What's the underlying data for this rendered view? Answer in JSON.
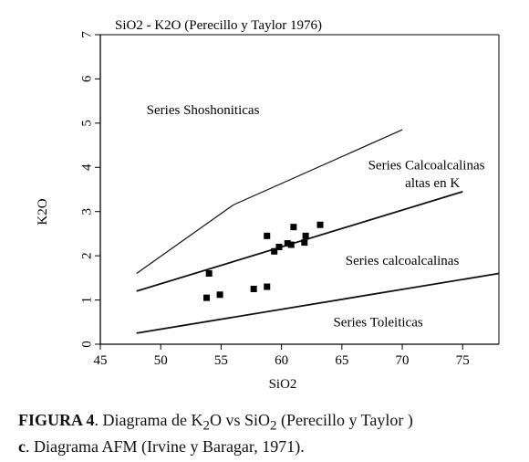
{
  "chart_data": {
    "type": "scatter",
    "title": "SiO2 - K2O (Perecillo y Taylor 1976)",
    "xlabel": "SiO2",
    "ylabel": "K2O",
    "xlim": [
      45,
      78
    ],
    "ylim": [
      0,
      7
    ],
    "x_ticks": [
      "45",
      "50",
      "55",
      "60",
      "65",
      "70",
      "75"
    ],
    "y_ticks": [
      "0",
      "1",
      "2",
      "3",
      "4",
      "5",
      "6",
      "7"
    ],
    "grid": false,
    "legend": "none",
    "boundaries": [
      {
        "points": [
          [
            48,
            1.6
          ],
          [
            56,
            3.15
          ],
          [
            70,
            4.85
          ]
        ]
      },
      {
        "points": [
          [
            48,
            1.2
          ],
          [
            75,
            3.45
          ]
        ]
      },
      {
        "points": [
          [
            48,
            0.25
          ],
          [
            78,
            1.6
          ]
        ]
      }
    ],
    "fields": [
      {
        "label": "Series Shoshoniticas",
        "x": 53.5,
        "y": 5.2
      },
      {
        "label": "Series Calcoalcalinas",
        "x": 72,
        "y": 3.95
      },
      {
        "label": "altas en K",
        "x": 72.5,
        "y": 3.55
      },
      {
        "label": "Series calcoalcalinas",
        "x": 70,
        "y": 1.8
      },
      {
        "label": "Series Toleiticas",
        "x": 68,
        "y": 0.4
      }
    ],
    "points": [
      {
        "x": 54.0,
        "y": 1.6
      },
      {
        "x": 53.8,
        "y": 1.05
      },
      {
        "x": 54.9,
        "y": 1.12
      },
      {
        "x": 57.7,
        "y": 1.25
      },
      {
        "x": 58.8,
        "y": 1.3
      },
      {
        "x": 58.8,
        "y": 2.45
      },
      {
        "x": 59.4,
        "y": 2.1
      },
      {
        "x": 59.8,
        "y": 2.2
      },
      {
        "x": 60.5,
        "y": 2.28
      },
      {
        "x": 60.8,
        "y": 2.25
      },
      {
        "x": 61.0,
        "y": 2.65
      },
      {
        "x": 61.9,
        "y": 2.3
      },
      {
        "x": 62.0,
        "y": 2.45
      },
      {
        "x": 63.2,
        "y": 2.7
      }
    ],
    "marker_color": "#000000"
  },
  "caption": {
    "line1_bold": "FIGURA 4",
    "line1_a": ".  Diagrama de K",
    "line1_sub1": "2",
    "line1_b": "O vs SiO",
    "line1_sub2": "2",
    "line1_c": "  (Perecillo y Taylor )",
    "line2_bold": "c",
    "line2_text": ". Diagrama AFM (Irvine y Baragar, 1971)."
  }
}
